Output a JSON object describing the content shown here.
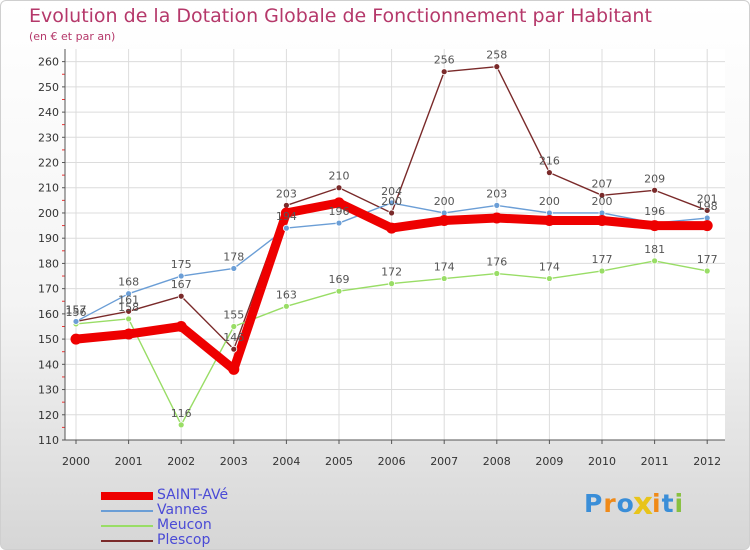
{
  "chart_data": {
    "type": "line",
    "title": "Evolution de la Dotation Globale de Fonctionnement par Habitant",
    "subtitle": "(en € et par an)",
    "xlabel": "",
    "ylabel": "",
    "categories": [
      "2000",
      "2001",
      "2002",
      "2003",
      "2004",
      "2005",
      "2006",
      "2007",
      "2008",
      "2009",
      "2010",
      "2011",
      "2012"
    ],
    "ylim": [
      110,
      260
    ],
    "yticks": [
      110,
      120,
      130,
      140,
      150,
      160,
      170,
      180,
      190,
      200,
      210,
      220,
      230,
      240,
      250,
      260
    ],
    "grid": true,
    "legend": "bottom-left",
    "series": [
      {
        "name": "SAINT-AVé",
        "color": "#ee0000",
        "values": [
          150,
          152,
          155,
          138,
          200,
          204,
          194,
          197,
          198,
          197,
          197,
          195,
          195
        ]
      },
      {
        "name": "Vannes",
        "color": "#6b9ed6",
        "values": [
          157,
          168,
          175,
          178,
          194,
          196,
          204,
          200,
          203,
          200,
          200,
          196,
          198
        ]
      },
      {
        "name": "Meucon",
        "color": "#99dd66",
        "values": [
          156,
          158,
          116,
          155,
          163,
          169,
          172,
          174,
          176,
          174,
          177,
          181,
          177
        ]
      },
      {
        "name": "Plescop",
        "color": "#7a2a2a",
        "values": [
          157,
          161,
          167,
          146,
          203,
          210,
          200,
          256,
          258,
          216,
          207,
          209,
          201
        ]
      }
    ]
  },
  "logo": {
    "text": "Proxiti",
    "colors": [
      "#3a8ed8",
      "#f08a18",
      "#3a8ed8",
      "#e8c41a",
      "#f08a18",
      "#3a8ed8",
      "#88c040"
    ]
  }
}
